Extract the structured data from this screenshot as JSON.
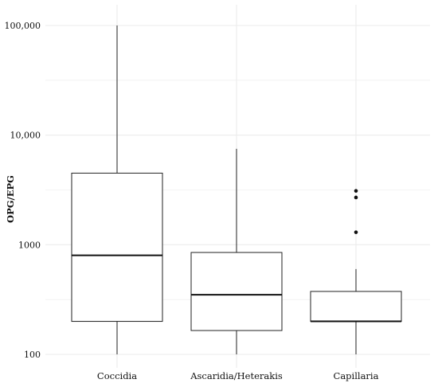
{
  "chart_data": {
    "type": "box",
    "ylabel": "OPG/EPG",
    "xlabel": "",
    "yscale": "log",
    "ylim": [
      80,
      115000
    ],
    "yticks": [
      100,
      1000,
      10000,
      100000
    ],
    "ytick_labels": [
      "100",
      "1000",
      "10,000",
      "100,000"
    ],
    "grid": true,
    "categories": [
      "Coccidia",
      "Ascaridia/Heterakis",
      "Capillaria"
    ],
    "boxes": [
      {
        "category": "Coccidia",
        "whisker_low": 100,
        "q1": 200,
        "median": 800,
        "q3": 4500,
        "whisker_high": 100000,
        "outliers": []
      },
      {
        "category": "Ascaridia/Heterakis",
        "whisker_low": 100,
        "q1": 165,
        "median": 350,
        "q3": 850,
        "whisker_high": 7500,
        "outliers": []
      },
      {
        "category": "Capillaria",
        "whisker_low": 100,
        "q1": 200,
        "median": 200,
        "q3": 375,
        "whisker_high": 600,
        "outliers": [
          1300,
          2700,
          3100
        ]
      }
    ],
    "colors": {
      "box_fill": "#ffffff",
      "line": "#222222",
      "grid": "#ebebeb"
    }
  }
}
